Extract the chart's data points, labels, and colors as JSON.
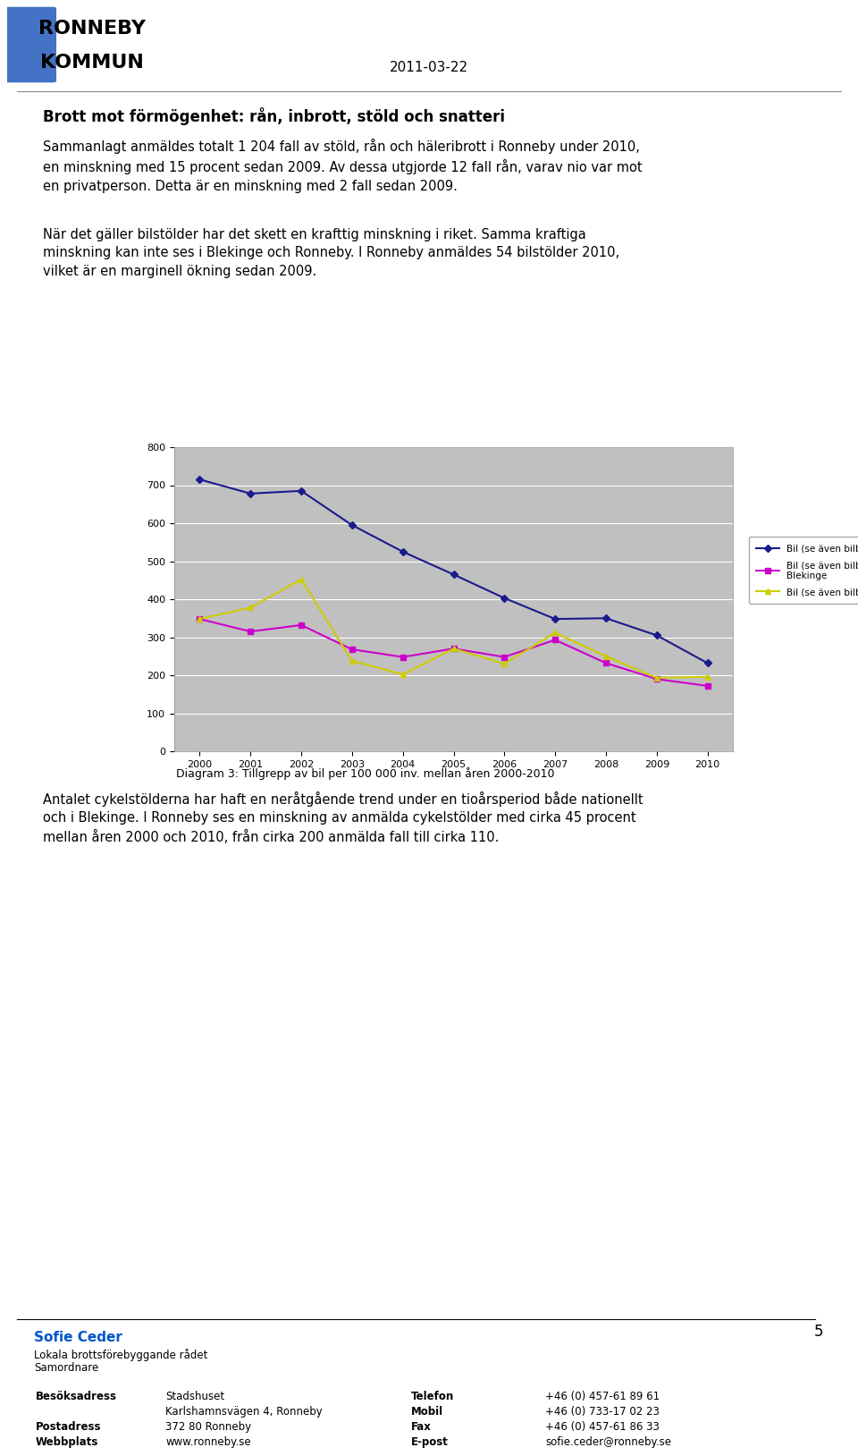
{
  "years": [
    2000,
    2001,
    2002,
    2003,
    2004,
    2005,
    2006,
    2007,
    2008,
    2009,
    2010
  ],
  "riket": [
    715,
    678,
    685,
    595,
    525,
    465,
    403,
    348,
    350,
    305,
    232
  ],
  "blekinge": [
    348,
    315,
    332,
    268,
    248,
    270,
    248,
    293,
    232,
    190,
    172
  ],
  "ronneby": [
    348,
    378,
    452,
    238,
    202,
    270,
    230,
    312,
    250,
    193,
    196
  ],
  "riket_color": "#1a1a8c",
  "blekinge_color": "#cc00cc",
  "ronneby_color": "#cccc00",
  "chart_bg": "#c0c0c0",
  "ylim_min": 0,
  "ylim_max": 800,
  "yticks": [
    0,
    100,
    200,
    300,
    400,
    500,
    600,
    700,
    800
  ],
  "legend_riket": "Bil (se även bilbrott), Riket",
  "legend_blekinge": "Bil (se även bilbrott),\nBlekinge",
  "legend_ronneby": "Bil (se även bilbrott),",
  "date_text": "2011-03-22",
  "logo_line1": "RONNEBY",
  "logo_line2": "KOMMUN",
  "heading": "Brott mot förmögenhet: rån, inbrott, stöld och snatteri",
  "para1": "Sammanlagt anmäldes totalt 1 204 fall av stöld, rån och häleribrott i Ronneby under 2010, en minskning med 15 procent sedan 2009. Av dessa utgjorde 12 fall rån, varav nio var mot en privatperson. Detta är en minskning med 2 fall sedan 2009.",
  "para2": "När det gäller bilstölder har det skett en krafttig minskning i riket. Samma kraftiga minskning kan inte ses i Blekinge och Ronneby. I Ronneby anmäldes 54 bilstölder 2010, vilket är en marginell ökning sedan 2009.",
  "caption": "Diagram 3: Tillgrepp av bil per 100 000 inv. mellan åren 2000-2010",
  "after_para": "Antalet cykelstölderna har haft en neråtgående trend under en tioårsperiod både nationellt och i Blekinge. I Ronneby ses en minskning av anmälda cykelstölder med cirka 45 procent mellan åren 2000 och 2010, från cirka 200 anmälda fall till cirka 110.",
  "footer_name": "Sofie Ceder",
  "footer_role1": "Lokala brottsförebyggande rådet",
  "footer_role2": "Samordnare",
  "col1_labels": [
    "Besöksadress",
    "",
    "Postadress",
    "Webbplats"
  ],
  "col2_vals": [
    "Stadshuset",
    "Karlshamnsvägen 4, Ronneby",
    "372 80 Ronneby",
    "www.ronneby.se"
  ],
  "col3_labels": [
    "Telefon",
    "Mobil",
    "Fax",
    "E-post"
  ],
  "col4_vals": [
    "+46 (0) 457-61 89 61",
    "+46 (0) 733-17 02 23",
    "+46 (0) 457-61 86 33",
    "sofie.ceder@ronneby.se"
  ],
  "page_num": "5"
}
